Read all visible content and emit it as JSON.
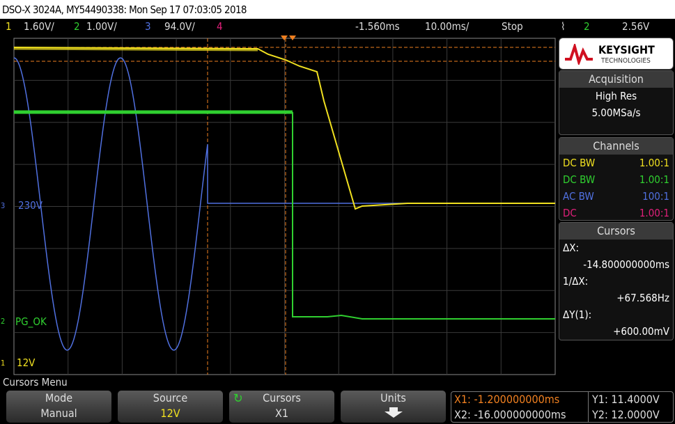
{
  "title": "DSO-X 3024A, MY54490338: Mon Sep 17 07:03:05 2018",
  "status": {
    "ch1_num": "1",
    "ch1_scale": "1.60V/",
    "ch2_num": "2",
    "ch2_scale": "1.00V/",
    "ch3_num": "3",
    "ch3_scale": "94.0V/",
    "ch4_num": "4",
    "delay": "-1.560ms",
    "timebase": "10.00ms/",
    "run_state": "Stop",
    "trigger_icon": "falling-edge-icon",
    "trigger_source": "2",
    "trigger_level": "2.56V"
  },
  "colors": {
    "ch1": "#f0e020",
    "ch2": "#30d030",
    "ch3": "#5070e0",
    "ch4": "#e0207a",
    "cursor": "#f08020"
  },
  "trace_labels": {
    "ch3_num": "3",
    "ch3": "230V",
    "ch2_num": "2",
    "ch2": "PG_OK",
    "ch1_num": "1",
    "ch1": "12V"
  },
  "brand": {
    "name": "KEYSIGHT",
    "sub": "TECHNOLOGIES"
  },
  "acquisition": {
    "header": "Acquisition",
    "mode": "High Res",
    "rate": "5.00MSa/s"
  },
  "channels": {
    "header": "Channels",
    "rows": [
      {
        "coupling": "DC BW",
        "probe": "1.00:1"
      },
      {
        "coupling": "DC BW",
        "probe": "1.00:1"
      },
      {
        "coupling": "AC BW",
        "probe": "100:1"
      },
      {
        "coupling": "DC",
        "probe": "1.00:1"
      }
    ]
  },
  "cursors": {
    "header": "Cursors",
    "dx_label": "ΔX:",
    "dx": "-14.800000000ms",
    "inv_dx_label": "1/ΔX:",
    "inv_dx": "+67.568Hz",
    "dy_label": "ΔY(1):",
    "dy": "+600.00mV"
  },
  "menu": {
    "title": "Cursors Menu",
    "keys": [
      {
        "label": "Mode",
        "value": "Manual"
      },
      {
        "label": "Source",
        "value": "12V"
      },
      {
        "label": "Cursors",
        "value": "X1"
      },
      {
        "label": "Units",
        "value": ""
      }
    ]
  },
  "readout": {
    "x1": "X1: -1.200000000ms",
    "x2": "X2: -16.000000000ms",
    "y1": "Y1: 11.4000V",
    "y2": "Y2: 12.0000V"
  }
}
